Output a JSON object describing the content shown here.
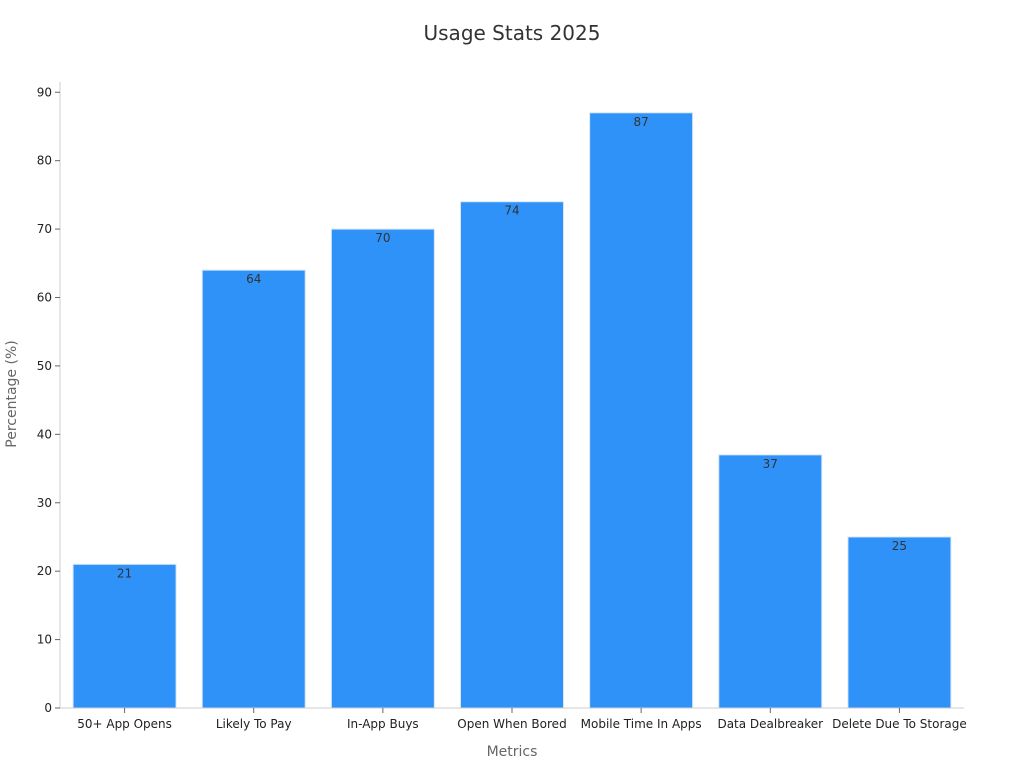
{
  "chart_data": {
    "type": "bar",
    "title": "Usage Stats 2025",
    "xlabel": "Metrics",
    "ylabel": "Percentage (%)",
    "categories": [
      "50+ App Opens",
      "Likely To Pay",
      "In-App Buys",
      "Open When Bored",
      "Mobile Time In Apps",
      "Data Dealbreaker",
      "Delete Due To Storage"
    ],
    "values": [
      21,
      64,
      70,
      74,
      87,
      37,
      25
    ],
    "yticks": [
      0,
      10,
      20,
      30,
      40,
      50,
      60,
      70,
      80,
      90
    ],
    "ylim": [
      0,
      91.5
    ],
    "grid": false,
    "legend": "none",
    "bar_color": "#2f92f9",
    "bar_edge_color": "#d8e6f7"
  }
}
